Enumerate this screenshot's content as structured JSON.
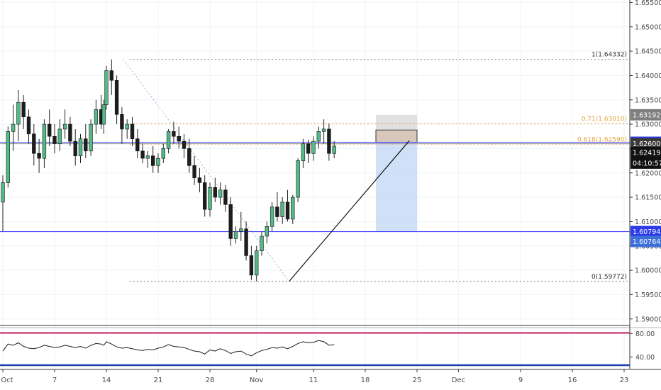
{
  "colors": {
    "up": "#53b987",
    "down": "#eb4d5c",
    "grid": "#f0f3fa",
    "axis_text": "#4a4a4a",
    "fib": "#e8a33d",
    "blue_line": "#3c3cff",
    "gray_line": "#9a9a9a",
    "rsi_line": "#1a1a1a",
    "rsi_upper": "#c2185b",
    "rsi_lower": "#1e3fae"
  },
  "chart_data": {
    "type": "candlestick",
    "price_axis": {
      "range": [
        1.5888,
        1.6555
      ],
      "ticks": [
        "1.65500",
        "1.65000",
        "1.64500",
        "1.64000",
        "1.63500",
        "1.63000",
        "1.62500",
        "1.62000",
        "1.61500",
        "1.61000",
        "1.60500",
        "1.60000",
        "1.59500",
        "1.59000"
      ]
    },
    "time_axis": {
      "labels": [
        {
          "text": "Oct",
          "i": 0
        },
        {
          "text": "7",
          "i": 10
        },
        {
          "text": "14",
          "i": 20
        },
        {
          "text": "21",
          "i": 30
        },
        {
          "text": "28",
          "i": 40
        },
        {
          "text": "Nov",
          "i": 49
        },
        {
          "text": "11",
          "i": 60
        },
        {
          "text": "18",
          "i": 70
        },
        {
          "text": "25",
          "i": 80
        },
        {
          "text": "Dec",
          "i": 88
        },
        {
          "text": "9",
          "i": 100
        },
        {
          "text": "16",
          "i": 110
        },
        {
          "text": "23",
          "i": 120
        }
      ],
      "slots": 123
    },
    "candles": [
      [
        1.614,
        1.6195,
        1.608,
        1.618
      ],
      [
        1.618,
        1.6295,
        1.617,
        1.6285
      ],
      [
        1.6285,
        1.634,
        1.6245,
        1.63
      ],
      [
        1.63,
        1.637,
        1.6265,
        1.6345
      ],
      [
        1.6345,
        1.636,
        1.629,
        1.6315
      ],
      [
        1.6315,
        1.633,
        1.626,
        1.628
      ],
      [
        1.628,
        1.63,
        1.6215,
        1.624
      ],
      [
        1.624,
        1.627,
        1.62,
        1.623
      ],
      [
        1.623,
        1.631,
        1.621,
        1.63
      ],
      [
        1.63,
        1.633,
        1.6255,
        1.6275
      ],
      [
        1.6275,
        1.63,
        1.624,
        1.626
      ],
      [
        1.626,
        1.631,
        1.6245,
        1.629
      ],
      [
        1.629,
        1.633,
        1.627,
        1.63
      ],
      [
        1.63,
        1.6315,
        1.6255,
        1.6265
      ],
      [
        1.6265,
        1.629,
        1.6215,
        1.6235
      ],
      [
        1.6235,
        1.628,
        1.622,
        1.627
      ],
      [
        1.627,
        1.63,
        1.623,
        1.6245
      ],
      [
        1.6245,
        1.631,
        1.6235,
        1.63
      ],
      [
        1.63,
        1.635,
        1.628,
        1.633
      ],
      [
        1.633,
        1.636,
        1.629,
        1.63
      ],
      [
        1.63,
        1.635,
        1.628,
        1.634
      ],
      [
        1.634,
        1.642,
        1.633,
        1.641
      ],
      [
        1.641,
        1.6433,
        1.636,
        1.639
      ],
      [
        1.639,
        1.64,
        1.63,
        1.632
      ],
      [
        1.632,
        1.6335,
        1.626,
        1.629
      ],
      [
        1.629,
        1.631,
        1.627,
        1.63
      ],
      [
        1.63,
        1.6315,
        1.6255,
        1.627
      ],
      [
        1.627,
        1.629,
        1.623,
        1.6245
      ],
      [
        1.6245,
        1.626,
        1.622,
        1.623
      ],
      [
        1.623,
        1.6245,
        1.621,
        1.6235
      ],
      [
        1.6235,
        1.6255,
        1.62,
        1.6215
      ],
      [
        1.6215,
        1.624,
        1.62,
        1.623
      ],
      [
        1.623,
        1.626,
        1.622,
        1.625
      ],
      [
        1.625,
        1.629,
        1.624,
        1.6285
      ],
      [
        1.6285,
        1.6305,
        1.626,
        1.6275
      ],
      [
        1.6275,
        1.6295,
        1.625,
        1.6265
      ],
      [
        1.6265,
        1.628,
        1.623,
        1.625
      ],
      [
        1.625,
        1.627,
        1.62,
        1.6215
      ],
      [
        1.6215,
        1.6235,
        1.6175,
        1.619
      ],
      [
        1.619,
        1.621,
        1.616,
        1.618
      ],
      [
        1.618,
        1.6195,
        1.611,
        1.6125
      ],
      [
        1.6125,
        1.618,
        1.611,
        1.617
      ],
      [
        1.617,
        1.619,
        1.614,
        1.615
      ],
      [
        1.615,
        1.618,
        1.6135,
        1.6165
      ],
      [
        1.6165,
        1.6175,
        1.612,
        1.6135
      ],
      [
        1.6135,
        1.615,
        1.605,
        1.6065
      ],
      [
        1.6065,
        1.609,
        1.6055,
        1.608
      ],
      [
        1.608,
        1.612,
        1.606,
        1.6085
      ],
      [
        1.6085,
        1.61,
        1.602,
        1.603
      ],
      [
        1.603,
        1.605,
        1.598,
        1.599
      ],
      [
        1.599,
        1.605,
        1.5977,
        1.604
      ],
      [
        1.604,
        1.608,
        1.603,
        1.607
      ],
      [
        1.607,
        1.61,
        1.6055,
        1.609
      ],
      [
        1.609,
        1.614,
        1.608,
        1.613
      ],
      [
        1.613,
        1.616,
        1.61,
        1.611
      ],
      [
        1.611,
        1.615,
        1.6095,
        1.614
      ],
      [
        1.614,
        1.6165,
        1.61,
        1.6105
      ],
      [
        1.6105,
        1.6155,
        1.6095,
        1.615
      ],
      [
        1.615,
        1.623,
        1.614,
        1.6225
      ],
      [
        1.6225,
        1.627,
        1.621,
        1.626
      ],
      [
        1.626,
        1.6268,
        1.622,
        1.624
      ],
      [
        1.624,
        1.6275,
        1.6225,
        1.6265
      ],
      [
        1.6265,
        1.6295,
        1.625,
        1.6285
      ],
      [
        1.6285,
        1.631,
        1.626,
        1.629
      ],
      [
        1.629,
        1.6301,
        1.6225,
        1.624
      ],
      [
        1.624,
        1.6265,
        1.623,
        1.6255
      ]
    ],
    "candle_index_map": [
      0,
      1,
      2,
      3,
      4,
      5,
      6,
      7,
      8,
      9,
      10,
      11,
      12,
      13,
      14,
      15,
      16,
      17,
      18,
      19,
      19.5,
      20,
      21,
      22,
      23,
      24,
      25,
      26,
      27,
      28,
      29,
      30,
      31,
      32,
      33,
      34,
      35,
      36,
      37,
      38,
      39,
      40,
      41,
      42,
      43,
      44,
      45,
      46,
      47,
      48,
      49,
      50,
      51,
      52,
      53,
      54,
      55,
      56,
      57,
      58,
      59,
      60,
      61,
      62,
      63,
      64
    ],
    "horizontal_lines": [
      {
        "label": "1(1.64332)",
        "price": 1.64332,
        "style": "dotted-gray"
      },
      {
        "label": "0.71(1.63010)",
        "price": 1.6301,
        "style": "dotted-orange"
      },
      {
        "label": "0.618(1.62590)",
        "price": 1.6259,
        "style": "dotted-orange"
      },
      {
        "label": "0(1.59772)",
        "price": 1.59772,
        "style": "dotted-gray"
      },
      {
        "price": 1.62629,
        "style": "solid-blue"
      },
      {
        "price": 1.626,
        "style": "solid-gray"
      },
      {
        "price": 1.60794,
        "style": "solid-blue"
      }
    ],
    "price_badges": [
      {
        "text": "1.63192",
        "price": 1.63192,
        "bg": "#7f7f7f",
        "fg": "#ffffff"
      },
      {
        "text": "1.62629",
        "price": 1.62629,
        "bg": "#2b39e8",
        "fg": "#ffffff"
      },
      {
        "text": "1.62600",
        "price": 1.626,
        "bg": "#3a3a3a",
        "fg": "#ffffff"
      },
      {
        "text": "1.62419",
        "price": 1.62419,
        "bg": "#111111",
        "fg": "#ffffff"
      },
      {
        "text": "04:10:57",
        "price": 1.622,
        "bg": "#111111",
        "fg": "#ffffff"
      },
      {
        "text": "1.60794",
        "price": 1.60794,
        "bg": "#2b39e8",
        "fg": "#ffffff"
      },
      {
        "text": "1.60764",
        "price": 1.6059,
        "bg": "#3d6fd9",
        "fg": "#ffffff"
      }
    ],
    "position_tool": {
      "entry": 1.62629,
      "stop": 1.63192,
      "target": 1.60794,
      "current_top": 1.6288
    },
    "rsi": {
      "range": [
        20,
        90
      ],
      "ticks": [
        "80.00",
        "40.00"
      ],
      "upper": 81,
      "lower": 26,
      "values": [
        50,
        62,
        60,
        64,
        58,
        55,
        54,
        56,
        60,
        58,
        56,
        57,
        60,
        58,
        56,
        58,
        55,
        60,
        63,
        62,
        60,
        66,
        62,
        57,
        55,
        56,
        54,
        52,
        51,
        53,
        52,
        55,
        57,
        61,
        58,
        57,
        56,
        53,
        50,
        49,
        45,
        52,
        50,
        54,
        51,
        46,
        49,
        50,
        45,
        42,
        47,
        51,
        53,
        56,
        55,
        57,
        54,
        58,
        63,
        66,
        64,
        65,
        68,
        66,
        60,
        61
      ]
    }
  }
}
